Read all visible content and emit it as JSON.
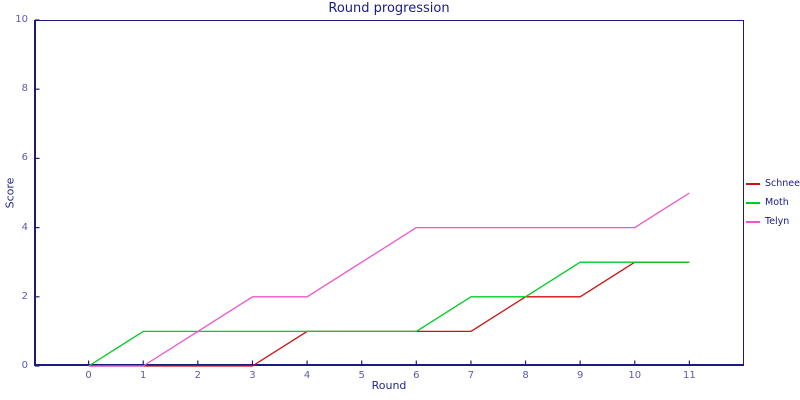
{
  "chart_data": {
    "type": "line",
    "title": "Round progression",
    "xlabel": "Round",
    "ylabel": "Score",
    "x": [
      0,
      1,
      2,
      3,
      4,
      5,
      6,
      7,
      8,
      9,
      10,
      11
    ],
    "series": [
      {
        "name": "Schnee",
        "color": "#cc1111",
        "values": [
          0,
          0,
          0,
          0,
          1,
          1,
          1,
          1,
          2,
          2,
          3,
          3
        ]
      },
      {
        "name": "Moth",
        "color": "#00cc22",
        "values": [
          0,
          1,
          1,
          1,
          1,
          1,
          1,
          2,
          2,
          3,
          3,
          3
        ]
      },
      {
        "name": "Telyn",
        "color": "#ee55cc",
        "values": [
          0,
          0,
          1,
          2,
          2,
          3,
          4,
          4,
          4,
          4,
          4,
          5
        ]
      }
    ],
    "x_ticks": [
      "0",
      "1",
      "2",
      "3",
      "4",
      "5",
      "6",
      "7",
      "8",
      "9",
      "10",
      "11"
    ],
    "y_ticks": [
      "0",
      "2",
      "4",
      "6",
      "8",
      "10"
    ],
    "x_tick_values": [
      0,
      1,
      2,
      3,
      4,
      5,
      6,
      7,
      8,
      9,
      10,
      11
    ],
    "y_tick_values": [
      0,
      2,
      4,
      6,
      8,
      10
    ],
    "xlim": [
      -1,
      12
    ],
    "ylim": [
      0,
      10
    ],
    "grid": false,
    "legend_position": "right-outside",
    "axis_color": "#1a1a80",
    "title_color": "#1a1a8c",
    "tick_text_color": "#5b5bab"
  }
}
